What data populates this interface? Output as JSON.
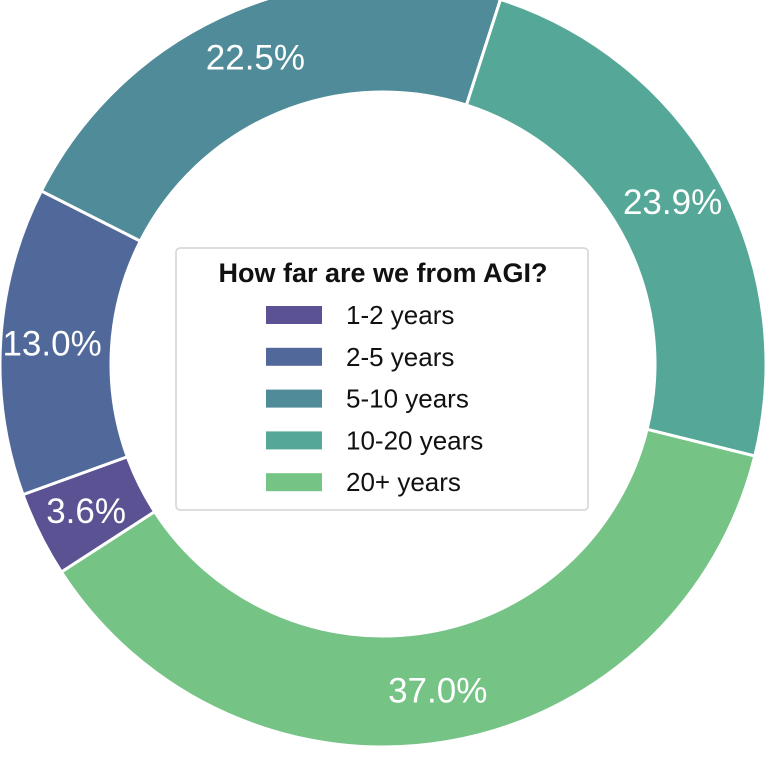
{
  "chart_data": {
    "type": "pie",
    "variant": "donut",
    "legend_title": "How far are we from AGI?",
    "legend_position": "center",
    "categories": [
      "1-2 years",
      "2-5 years",
      "5-10 years",
      "10-20 years",
      "20+ years"
    ],
    "values": [
      3.6,
      13.0,
      22.5,
      23.9,
      37.0
    ],
    "labels": [
      "3.6%",
      "13.0%",
      "22.5%",
      "23.9%",
      "37.0%"
    ],
    "colors": [
      "#5a5293",
      "#51699a",
      "#508b99",
      "#55a898",
      "#76c386"
    ],
    "unit": "%"
  }
}
